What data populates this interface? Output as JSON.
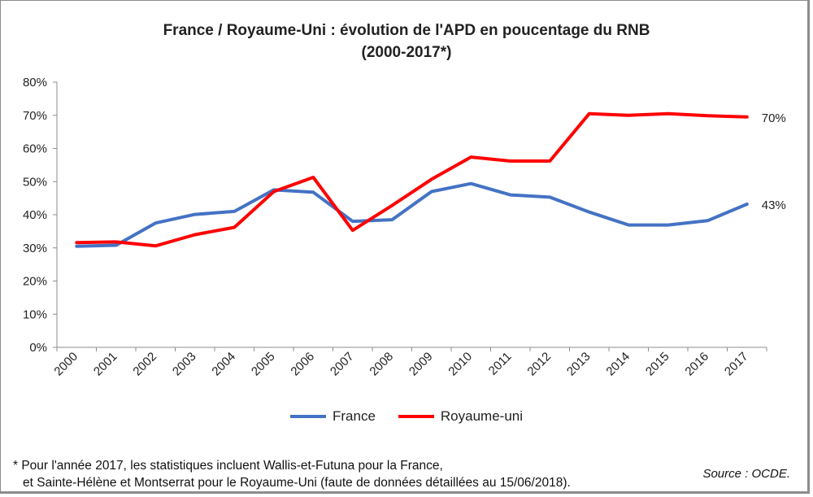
{
  "chart_data": {
    "type": "line",
    "title": "France / Royaume-Uni : évolution de l'APD en poucentage du RNB",
    "subtitle": "(2000-2017*)",
    "xlabel": "",
    "ylabel": "",
    "categories": [
      "2000",
      "2001",
      "2002",
      "2003",
      "2004",
      "2005",
      "2006",
      "2007",
      "2008",
      "2009",
      "2010",
      "2011",
      "2012",
      "2013",
      "2014",
      "2015",
      "2016",
      "2017"
    ],
    "series": [
      {
        "name": "France",
        "color": "#4472c4",
        "values": [
          30.5,
          30.8,
          37.5,
          40.1,
          41.0,
          47.5,
          46.8,
          38.0,
          38.5,
          47.0,
          49.4,
          46.0,
          45.3,
          40.8,
          36.9,
          36.9,
          38.2,
          43.2
        ]
      },
      {
        "name": "Royaume-uni",
        "color": "#ff0000",
        "values": [
          31.6,
          31.8,
          30.6,
          34.0,
          36.2,
          47.0,
          51.3,
          35.3,
          42.8,
          50.7,
          57.4,
          56.2,
          56.2,
          70.5,
          70.0,
          70.5,
          69.9,
          69.5
        ]
      }
    ],
    "end_labels": {
      "Royaume-uni": "70%",
      "France": "43%"
    },
    "yticks": [
      "0%",
      "10%",
      "20%",
      "30%",
      "40%",
      "50%",
      "60%",
      "70%",
      "80%"
    ],
    "ylim": [
      0,
      80
    ],
    "grid": false,
    "legend_position": "bottom"
  },
  "footnote": {
    "line1": "* Pour l'année 2017, les statistiques incluent Wallis-et-Futuna pour la France,",
    "line2": "et Sainte-Hélène et Montserrat pour le Royaume-Uni (faute de données détaillées au 15/06/2018)."
  },
  "source": "Source : OCDE."
}
